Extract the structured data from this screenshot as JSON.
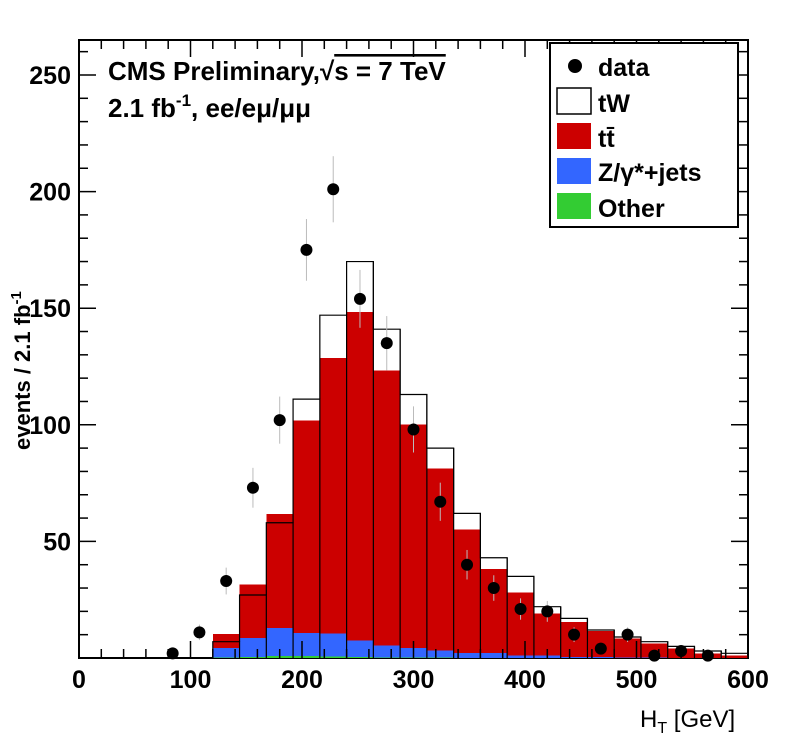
{
  "chart_data": {
    "type": "bar",
    "title": "CMS Preliminary,",
    "sqrt_symbol": "√",
    "energy_label": "s = 7 TeV",
    "lumi_value": "2.1 fb",
    "lumi_exp": "-1",
    "channels": ", ee/eμ/μμ",
    "xlabel_main": "H",
    "xlabel_sub": "T",
    "xlabel_unit": " [GeV]",
    "ylabel_main": "events / 2.1 fb",
    "ylabel_exp": "-1",
    "xlim": [
      0,
      600
    ],
    "ylim": [
      0,
      265
    ],
    "x_ticks": [
      0,
      100,
      200,
      300,
      400,
      500,
      600
    ],
    "y_ticks": [
      50,
      100,
      150,
      200,
      250
    ],
    "bin_edges": [
      0,
      24,
      48,
      72,
      96,
      120,
      144,
      168,
      192,
      216,
      240,
      264,
      288,
      312,
      336,
      360,
      384,
      408,
      432,
      456,
      480,
      504,
      528,
      552,
      576,
      600
    ],
    "stack": [
      {
        "name": "Other",
        "color": "#33cc33",
        "values": [
          0,
          0,
          0,
          0,
          0,
          0.3,
          0.5,
          0.8,
          0.8,
          0.6,
          0.4,
          0.3,
          0.2,
          0.2,
          0.1,
          0.1,
          0,
          0,
          0,
          0,
          0,
          0,
          0,
          0,
          0
        ]
      },
      {
        "name": "Z/γ*+jets",
        "color": "#3366ff",
        "values": [
          0,
          0,
          0,
          0,
          0,
          4,
          8,
          12,
          10,
          10,
          7,
          5,
          4,
          3,
          2,
          2,
          1,
          1,
          0.5,
          0.5,
          0.3,
          0.2,
          0,
          0,
          0
        ]
      },
      {
        "name": "tt̄",
        "color": "#cc0000",
        "values": [
          0,
          0,
          0,
          0,
          0,
          6,
          23,
          49,
          91,
          118,
          141,
          118,
          96,
          78,
          53,
          36,
          27,
          18,
          15,
          11,
          8,
          6,
          4,
          2,
          1
        ]
      },
      {
        "name": "tW",
        "color": "#ffffff",
        "values": [
          0,
          0,
          0,
          0,
          0,
          7,
          27,
          58,
          111,
          147,
          170,
          141,
          113,
          90,
          62,
          43,
          35,
          22,
          17,
          12,
          9,
          7,
          5,
          3,
          2
        ]
      }
    ],
    "data_points": {
      "name": "data",
      "x": [
        84,
        108,
        132,
        156,
        180,
        204,
        228,
        252,
        276,
        300,
        324,
        348,
        372,
        396,
        420,
        444,
        468,
        492,
        516,
        540,
        564
      ],
      "y": [
        2,
        11,
        33,
        73,
        102,
        175,
        201,
        154,
        135,
        98,
        67,
        40,
        30,
        21,
        20,
        10,
        4,
        10,
        1,
        3,
        1
      ]
    },
    "legend": [
      {
        "label": "data",
        "kind": "marker"
      },
      {
        "label": "tW",
        "kind": "box",
        "color": "#ffffff"
      },
      {
        "label": "tt̄",
        "kind": "box",
        "color": "#cc0000"
      },
      {
        "label": "Z/γ*+jets",
        "kind": "box",
        "color": "#3366ff"
      },
      {
        "label": "Other",
        "kind": "box",
        "color": "#33cc33"
      }
    ]
  }
}
